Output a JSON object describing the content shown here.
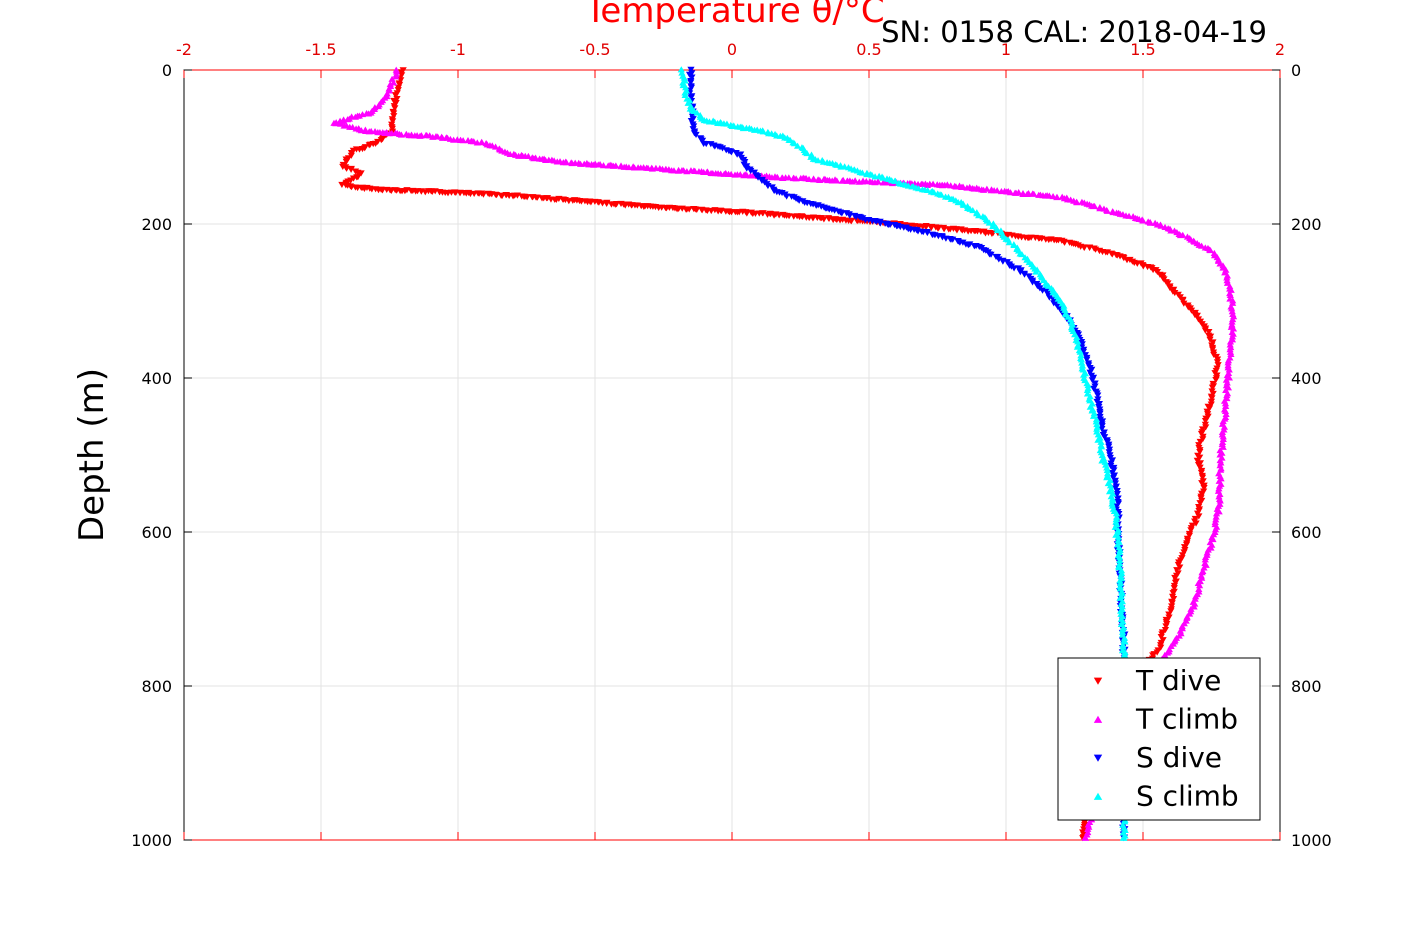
{
  "chart_data": {
    "type": "scatter",
    "title": "Temperature θ/°C",
    "subtitle": "SN: 0158  CAL: 2018-04-19",
    "xlabel": "Temperature θ/°C",
    "ylabel": "Depth (m)",
    "xlim": [
      -2,
      2
    ],
    "ylim": [
      0,
      1000
    ],
    "y_reversed": true,
    "x_axis_position": "top",
    "x_ticks": [
      -2,
      -1.5,
      -1,
      -0.5,
      0,
      0.5,
      1,
      1.5,
      2
    ],
    "x_tick_labels": [
      "-2",
      "-1.5",
      "-1",
      "-0.5",
      "0",
      "0.5",
      "1",
      "1.5",
      "2"
    ],
    "y_ticks": [
      0,
      200,
      400,
      600,
      800,
      1000
    ],
    "y_tick_labels": [
      "0",
      "200",
      "400",
      "600",
      "800",
      "1000"
    ],
    "grid": true,
    "legend_position": "bottom-right",
    "series": [
      {
        "name": "T dive",
        "color": "#ff0000",
        "marker": "triangle-down",
        "points": [
          [
            -1.2,
            0
          ],
          [
            -1.23,
            40
          ],
          [
            -1.24,
            80
          ],
          [
            -1.3,
            95
          ],
          [
            -1.38,
            105
          ],
          [
            -1.42,
            125
          ],
          [
            -1.35,
            135
          ],
          [
            -1.42,
            150
          ],
          [
            -1.3,
            155
          ],
          [
            -1.1,
            158
          ],
          [
            -0.8,
            163
          ],
          [
            -0.5,
            172
          ],
          [
            -0.2,
            180
          ],
          [
            0.05,
            185
          ],
          [
            0.3,
            192
          ],
          [
            0.6,
            200
          ],
          [
            0.9,
            210
          ],
          [
            1.2,
            222
          ],
          [
            1.4,
            240
          ],
          [
            1.55,
            260
          ],
          [
            1.62,
            290
          ],
          [
            1.7,
            320
          ],
          [
            1.75,
            350
          ],
          [
            1.77,
            380
          ],
          [
            1.76,
            410
          ],
          [
            1.74,
            440
          ],
          [
            1.7,
            500
          ],
          [
            1.72,
            540
          ],
          [
            1.7,
            580
          ],
          [
            1.65,
            620
          ],
          [
            1.62,
            660
          ],
          [
            1.6,
            700
          ],
          [
            1.56,
            750
          ],
          [
            1.5,
            780
          ],
          [
            1.45,
            820
          ],
          [
            1.4,
            860
          ],
          [
            1.35,
            900
          ],
          [
            1.3,
            950
          ],
          [
            1.28,
            1000
          ]
        ]
      },
      {
        "name": "T climb",
        "color": "#ff00ff",
        "marker": "triangle-up",
        "points": [
          [
            -1.22,
            0
          ],
          [
            -1.27,
            40
          ],
          [
            -1.32,
            55
          ],
          [
            -1.45,
            68
          ],
          [
            -1.35,
            78
          ],
          [
            -1.25,
            82
          ],
          [
            -1.1,
            86
          ],
          [
            -0.9,
            95
          ],
          [
            -0.8,
            110
          ],
          [
            -0.6,
            120
          ],
          [
            -0.4,
            125
          ],
          [
            -0.2,
            130
          ],
          [
            0,
            135
          ],
          [
            0.2,
            140
          ],
          [
            0.5,
            145
          ],
          [
            0.8,
            150
          ],
          [
            1,
            158
          ],
          [
            1.2,
            165
          ],
          [
            1.3,
            175
          ],
          [
            1.45,
            190
          ],
          [
            1.55,
            200
          ],
          [
            1.65,
            215
          ],
          [
            1.75,
            235
          ],
          [
            1.8,
            260
          ],
          [
            1.82,
            290
          ],
          [
            1.83,
            320
          ],
          [
            1.82,
            360
          ],
          [
            1.81,
            400
          ],
          [
            1.8,
            440
          ],
          [
            1.79,
            480
          ],
          [
            1.78,
            520
          ],
          [
            1.78,
            560
          ],
          [
            1.76,
            600
          ],
          [
            1.72,
            650
          ],
          [
            1.68,
            700
          ],
          [
            1.62,
            740
          ],
          [
            1.55,
            780
          ],
          [
            1.47,
            830
          ],
          [
            1.4,
            880
          ],
          [
            1.34,
            930
          ],
          [
            1.29,
            1000
          ]
        ]
      },
      {
        "name": "S dive",
        "color": "#0000ff",
        "marker": "triangle-down",
        "points": [
          [
            -0.15,
            0
          ],
          [
            -0.15,
            40
          ],
          [
            -0.14,
            80
          ],
          [
            -0.1,
            95
          ],
          [
            -0.05,
            100
          ],
          [
            0.03,
            110
          ],
          [
            0.05,
            125
          ],
          [
            0.1,
            140
          ],
          [
            0.15,
            155
          ],
          [
            0.25,
            170
          ],
          [
            0.35,
            180
          ],
          [
            0.5,
            195
          ],
          [
            0.7,
            210
          ],
          [
            0.9,
            230
          ],
          [
            1.05,
            260
          ],
          [
            1.15,
            290
          ],
          [
            1.22,
            320
          ],
          [
            1.27,
            350
          ],
          [
            1.3,
            380
          ],
          [
            1.33,
            420
          ],
          [
            1.35,
            460
          ],
          [
            1.38,
            500
          ],
          [
            1.4,
            540
          ],
          [
            1.41,
            580
          ],
          [
            1.41,
            620
          ],
          [
            1.42,
            660
          ],
          [
            1.42,
            700
          ],
          [
            1.43,
            740
          ],
          [
            1.43,
            780
          ],
          [
            1.43,
            820
          ],
          [
            1.43,
            860
          ],
          [
            1.43,
            900
          ],
          [
            1.43,
            940
          ],
          [
            1.43,
            1000
          ]
        ]
      },
      {
        "name": "S climb",
        "color": "#00ffff",
        "marker": "triangle-up",
        "points": [
          [
            -0.18,
            0
          ],
          [
            -0.17,
            30
          ],
          [
            -0.15,
            50
          ],
          [
            -0.1,
            65
          ],
          [
            0,
            72
          ],
          [
            0.1,
            78
          ],
          [
            0.2,
            88
          ],
          [
            0.25,
            100
          ],
          [
            0.3,
            115
          ],
          [
            0.45,
            130
          ],
          [
            0.6,
            145
          ],
          [
            0.75,
            160
          ],
          [
            0.85,
            175
          ],
          [
            0.95,
            200
          ],
          [
            1.05,
            235
          ],
          [
            1.12,
            265
          ],
          [
            1.2,
            300
          ],
          [
            1.25,
            340
          ],
          [
            1.28,
            380
          ],
          [
            1.3,
            420
          ],
          [
            1.33,
            460
          ],
          [
            1.35,
            500
          ],
          [
            1.38,
            540
          ],
          [
            1.4,
            580
          ],
          [
            1.41,
            620
          ],
          [
            1.42,
            660
          ],
          [
            1.42,
            700
          ],
          [
            1.43,
            740
          ],
          [
            1.43,
            780
          ],
          [
            1.43,
            820
          ],
          [
            1.43,
            860
          ],
          [
            1.43,
            900
          ],
          [
            1.43,
            950
          ],
          [
            1.43,
            1000
          ]
        ]
      }
    ]
  }
}
